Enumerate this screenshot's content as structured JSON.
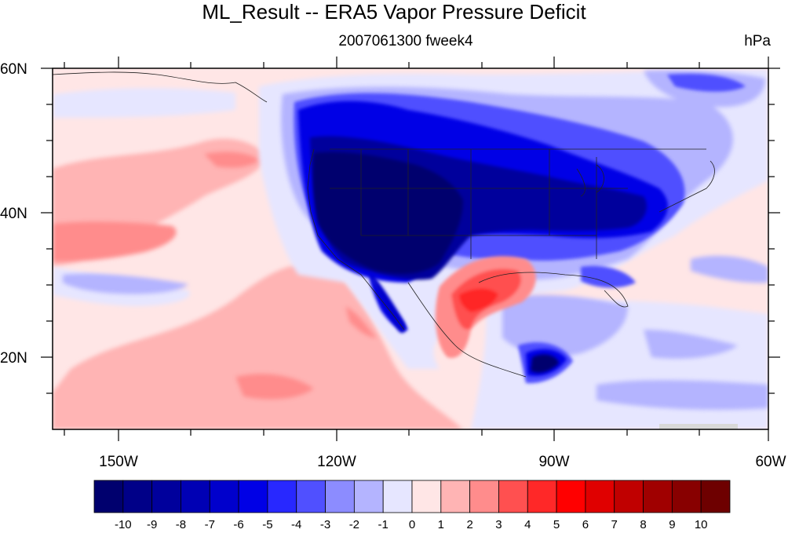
{
  "header": {
    "title": "ML_Result -- ERA5 Vapor Pressure Deficit",
    "subtitle": "2007061300 fweek4",
    "units": "hPa"
  },
  "axes": {
    "lat_labels": [
      "60N",
      "40N",
      "20N"
    ],
    "lon_labels": [
      "150W",
      "120W",
      "90W",
      "60W"
    ],
    "lon_range": [
      -159,
      -61
    ],
    "lat_range": [
      10,
      60
    ]
  },
  "colorbar": {
    "labels": [
      "-10",
      "-9",
      "-8",
      "-7",
      "-6",
      "-5",
      "-4",
      "-3",
      "-2",
      "-1",
      "0",
      "1",
      "2",
      "3",
      "4",
      "5",
      "6",
      "7",
      "8",
      "9",
      "10"
    ],
    "colors": [
      "#00006e",
      "#000088",
      "#00009c",
      "#0000b4",
      "#0000cc",
      "#0000e6",
      "#2828ff",
      "#5050ff",
      "#8c8cff",
      "#b4b4ff",
      "#e6e6ff",
      "#ffe6e6",
      "#ffb4b4",
      "#ff8c8c",
      "#ff5050",
      "#ff2828",
      "#ff0000",
      "#e00000",
      "#c00000",
      "#a00000",
      "#880000",
      "#6e0000"
    ]
  },
  "field_colors": {
    "background": "#ffe6e6",
    "ocean_light_red": "#ffb4b4",
    "ocean_red": "#ff8c8c",
    "light_blue": "#e6e6ff",
    "pale_blue": "#b4b4ff",
    "mid_blue": "#5050ff",
    "blue": "#0000e6",
    "dark_blue": "#00009c",
    "darkest_blue": "#00006e",
    "red": "#ff2828",
    "missing_gray": "#d8d8d8"
  }
}
